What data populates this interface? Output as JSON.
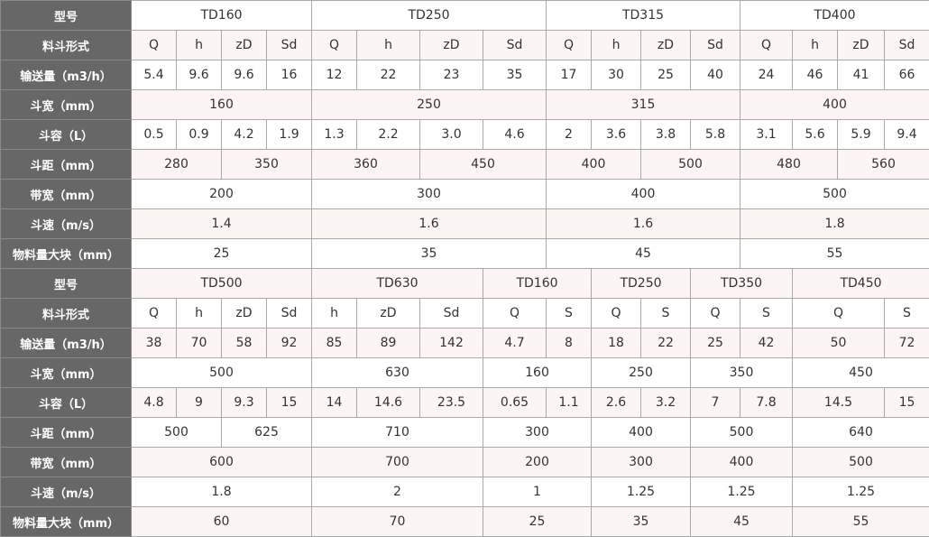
{
  "top": [
    {
      "label": "型号",
      "cells": [
        "TD160",
        "TD250",
        "TD315",
        "TD400"
      ]
    },
    {
      "label": "料斗形式",
      "cells": [
        "Q",
        "h",
        "zD",
        "Sd",
        "Q",
        "h",
        "zD",
        "Sd",
        "Q",
        "h",
        "zD",
        "Sd",
        "Q",
        "h",
        "zD",
        "Sd"
      ]
    },
    {
      "label": "输送量（m3/h）",
      "cells": [
        "5.4",
        "9.6",
        "9.6",
        "16",
        "12",
        "22",
        "23",
        "35",
        "17",
        "30",
        "25",
        "40",
        "24",
        "46",
        "41",
        "66"
      ]
    },
    {
      "label": "斗宽（mm）",
      "cells": [
        "160",
        "250",
        "315",
        "400"
      ]
    },
    {
      "label": "斗容（L）",
      "cells": [
        "0.5",
        "0.9",
        "4.2",
        "1.9",
        "1.3",
        "2.2",
        "3.0",
        "4.6",
        "2",
        "3.6",
        "3.8",
        "5.8",
        "3.1",
        "5.6",
        "5.9",
        "9.4"
      ]
    },
    {
      "label": "斗距（mm）",
      "cells": [
        "280",
        "350",
        "360",
        "450",
        "400",
        "500",
        "480",
        "560"
      ]
    },
    {
      "label": "带宽（mm）",
      "cells": [
        "200",
        "300",
        "400",
        "500"
      ]
    },
    {
      "label": "斗速（m/s）",
      "cells": [
        "1.4",
        "1.6",
        "1.6",
        "1.8"
      ]
    },
    {
      "label": "物料量大块（mm）",
      "cells": [
        "25",
        "35",
        "45",
        "55"
      ]
    }
  ],
  "bottom": [
    {
      "label": "型号",
      "cells": [
        "TD500",
        "TD630",
        "TD160",
        "TD250",
        "TD350",
        "TD450"
      ]
    },
    {
      "label": "料斗形式",
      "cells": [
        "Q",
        "h",
        "zD",
        "Sd",
        "h",
        "zD",
        "Sd",
        "Q",
        "S",
        "Q",
        "S",
        "Q",
        "S",
        "Q",
        "S"
      ]
    },
    {
      "label": "输送量（m3/h）",
      "cells": [
        "38",
        "70",
        "58",
        "92",
        "85",
        "89",
        "142",
        "4.7",
        "8",
        "18",
        "22",
        "25",
        "42",
        "50",
        "72"
      ]
    },
    {
      "label": "斗宽（mm）",
      "cells": [
        "500",
        "630",
        "160",
        "250",
        "350",
        "450"
      ]
    },
    {
      "label": "斗容（L）",
      "cells": [
        "4.8",
        "9",
        "9.3",
        "15",
        "14",
        "14.6",
        "23.5",
        "0.65",
        "1.1",
        "2.6",
        "3.2",
        "7",
        "7.8",
        "14.5",
        "15"
      ]
    },
    {
      "label": "斗距（mm）",
      "cells": [
        "500",
        "625",
        "710",
        "300",
        "400",
        "500",
        "640"
      ]
    },
    {
      "label": "带宽（mm）",
      "cells": [
        "600",
        "700",
        "200",
        "300",
        "400",
        "500"
      ]
    },
    {
      "label": "斗速（m/s）",
      "cells": [
        "1.8",
        "2",
        "1",
        "1.25",
        "1.25",
        "1.25"
      ]
    },
    {
      "label": "物料量大块（mm）",
      "cells": [
        "60",
        "70",
        "25",
        "35",
        "45",
        "55"
      ]
    }
  ],
  "colors": {
    "header_bg": "#676767",
    "stripe": "#fdf4f4",
    "border": "#a9a9a9"
  }
}
